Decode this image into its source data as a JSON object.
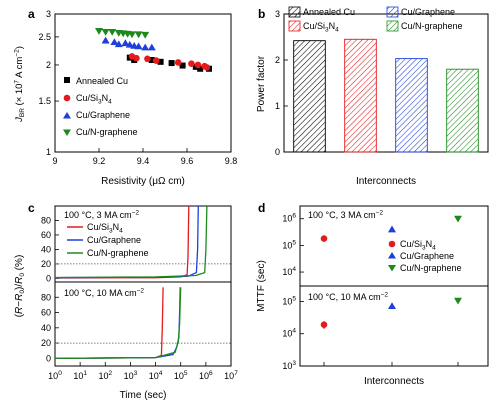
{
  "chart_data": [
    {
      "panel": "a",
      "type": "scatter",
      "xlabel": "Resistivity (μΩ cm)",
      "ylabel": "J_BR (× 10^7 A cm^-2)",
      "xlim": [
        9.0,
        9.8
      ],
      "ylim": [
        1.0,
        3.0
      ],
      "yscale": "log",
      "xticks": [
        "9",
        "9.2",
        "9.4",
        "9.6",
        "9.8"
      ],
      "yticks": [
        "1",
        "1.5",
        "2",
        "2.5",
        "3"
      ],
      "legend": [
        "Annealed Cu",
        "Cu/Si3N4",
        "Cu/Graphene",
        "Cu/N-graphene"
      ],
      "series": [
        {
          "name": "Annealed Cu",
          "color": "#000000",
          "marker": "square",
          "points": [
            [
              9.34,
              2.12
            ],
            [
              9.36,
              2.08
            ],
            [
              9.44,
              2.08
            ],
            [
              9.48,
              2.05
            ],
            [
              9.53,
              2.03
            ],
            [
              9.58,
              1.99
            ],
            [
              9.64,
              1.97
            ],
            [
              9.66,
              1.94
            ],
            [
              9.7,
              1.94
            ]
          ]
        },
        {
          "name": "Cu/Si3N4",
          "color": "#e41a1c",
          "marker": "circle",
          "points": [
            [
              9.35,
              2.14
            ],
            [
              9.37,
              2.11
            ],
            [
              9.42,
              2.1
            ],
            [
              9.46,
              2.07
            ],
            [
              9.56,
              2.04
            ],
            [
              9.62,
              2.02
            ],
            [
              9.65,
              2.0
            ],
            [
              9.68,
              1.98
            ],
            [
              9.69,
              1.96
            ]
          ]
        },
        {
          "name": "Cu/Graphene",
          "color": "#1f3fdc",
          "marker": "triangle-up",
          "points": [
            [
              9.23,
              2.43
            ],
            [
              9.27,
              2.4
            ],
            [
              9.29,
              2.36
            ],
            [
              9.32,
              2.38
            ],
            [
              9.34,
              2.35
            ],
            [
              9.36,
              2.33
            ],
            [
              9.38,
              2.32
            ],
            [
              9.41,
              2.3
            ],
            [
              9.44,
              2.3
            ]
          ]
        },
        {
          "name": "Cu/N-graphene",
          "color": "#1e8a1e",
          "marker": "triangle-down",
          "points": [
            [
              9.2,
              2.62
            ],
            [
              9.23,
              2.6
            ],
            [
              9.26,
              2.6
            ],
            [
              9.29,
              2.58
            ],
            [
              9.31,
              2.57
            ],
            [
              9.33,
              2.56
            ],
            [
              9.35,
              2.55
            ],
            [
              9.38,
              2.55
            ],
            [
              9.41,
              2.54
            ]
          ]
        }
      ]
    },
    {
      "panel": "b",
      "type": "bar",
      "xlabel": "Interconnects",
      "ylabel": "Power factor",
      "ylim": [
        0,
        3
      ],
      "yticks": [
        "0",
        "1",
        "2",
        "3"
      ],
      "legend": [
        "Annealed Cu",
        "Cu/Graphene",
        "Cu/Si3N4",
        "Cu/N-graphene"
      ],
      "categories": [
        "Annealed Cu",
        "Cu/Si3N4",
        "Cu/Graphene",
        "Cu/N-graphene"
      ],
      "values": [
        2.42,
        2.45,
        2.03,
        1.8
      ],
      "colors": [
        "#000000",
        "#e41a1c",
        "#1f3fdc",
        "#1e8a1e"
      ],
      "pattern": "diagonal hatch"
    },
    {
      "panel": "c",
      "type": "line",
      "xlabel": "Time (sec)",
      "ylabel": "(R−R0)/R0 (%)",
      "xscale": "log",
      "xlim": [
        1,
        10000000
      ],
      "xticks": [
        "10^0",
        "10^1",
        "10^2",
        "10^3",
        "10^4",
        "10^5",
        "10^6",
        "10^7"
      ],
      "subplots": [
        {
          "condition": "100 °C, 3 MA cm^-2",
          "ylim": [
            -5,
            100
          ],
          "yticks": [
            "0",
            "20",
            "40",
            "60",
            "80"
          ],
          "reference_line": 20,
          "legend": [
            "Cu/Si3N4",
            "Cu/Graphene",
            "Cu/N-graphene"
          ],
          "series": [
            {
              "name": "Cu/Si3N4",
              "color": "#e41a1c",
              "points": [
                [
                  1,
                  0.5
                ],
                [
                  10000,
                  1
                ],
                [
                  100000,
                  2
                ],
                [
                  180000,
                  5
                ],
                [
                  195000,
                  30
                ],
                [
                  210000,
                  100
                ]
              ]
            },
            {
              "name": "Cu/Graphene",
              "color": "#1f3fdc",
              "points": [
                [
                  1,
                  1
                ],
                [
                  10000,
                  1.5
                ],
                [
                  200000,
                  3
                ],
                [
                  420000,
                  8
                ],
                [
                  470000,
                  40
                ],
                [
                  500000,
                  100
                ]
              ]
            },
            {
              "name": "Cu/N-graphene",
              "color": "#1e8a1e",
              "points": [
                [
                  1,
                  1.2
                ],
                [
                  10000,
                  2
                ],
                [
                  400000,
                  4
                ],
                [
                  900000,
                  8
                ],
                [
                  1000000,
                  40
                ],
                [
                  1100000,
                  100
                ]
              ]
            }
          ]
        },
        {
          "condition": "100 °C, 10 MA cm^-2",
          "ylim": [
            -10,
            100
          ],
          "yticks": [
            "0",
            "20",
            "40",
            "60",
            "80"
          ],
          "reference_line": 20,
          "series": [
            {
              "name": "Cu/Si3N4",
              "color": "#e41a1c",
              "points": [
                [
                  1,
                  0
                ],
                [
                  10000,
                  1
                ],
                [
                  17000,
                  4
                ],
                [
                  18500,
                  40
                ],
                [
                  20000,
                  93
                ]
              ]
            },
            {
              "name": "Cu/Graphene",
              "color": "#1f3fdc",
              "points": [
                [
                  1,
                  0
                ],
                [
                  10000,
                  1
                ],
                [
                  50000,
                  5
                ],
                [
                  70000,
                  15
                ],
                [
                  85000,
                  28
                ],
                [
                  90000,
                  60
                ],
                [
                  95000,
                  93
                ]
              ]
            },
            {
              "name": "Cu/N-graphene",
              "color": "#1e8a1e",
              "points": [
                [
                  1,
                  0
                ],
                [
                  10000,
                  1
                ],
                [
                  60000,
                  8
                ],
                [
                  80000,
                  22
                ],
                [
                  90000,
                  45
                ],
                [
                  100000,
                  93
                ]
              ]
            }
          ]
        }
      ]
    },
    {
      "panel": "d",
      "type": "scatter",
      "xlabel": "Interconnects",
      "ylabel": "MTTF (sec)",
      "yscale": "log",
      "categories": [
        "Cu/Si3N4",
        "Cu/Graphene",
        "Cu/N-graphene"
      ],
      "subplots": [
        {
          "condition": "100 °C, 3 MA cm^-2",
          "ylim": [
            3000,
            3000000
          ],
          "yticks": [
            "10^4",
            "10^5",
            "10^6"
          ],
          "legend": [
            "Cu/Si3N4",
            "Cu/Graphene",
            "Cu/N-graphene"
          ],
          "values": [
            180000,
            400000,
            1000000
          ],
          "markers": [
            "circle",
            "triangle-up",
            "triangle-down"
          ],
          "colors": [
            "#e41a1c",
            "#1f3fdc",
            "#1e8a1e"
          ]
        },
        {
          "condition": "100 °C, 10 MA cm^-2",
          "ylim": [
            1000,
            300000
          ],
          "yticks": [
            "10^3",
            "10^4",
            "10^5"
          ],
          "values": [
            19000,
            72000,
            105000
          ],
          "error_low": [
            14000,
            60000,
            85000
          ],
          "error_high": [
            24000,
            85000,
            125000
          ],
          "markers": [
            "circle",
            "triangle-up",
            "triangle-down"
          ],
          "colors": [
            "#e41a1c",
            "#1f3fdc",
            "#1e8a1e"
          ]
        }
      ]
    }
  ],
  "panel_labels": [
    "a",
    "b",
    "c",
    "d"
  ]
}
